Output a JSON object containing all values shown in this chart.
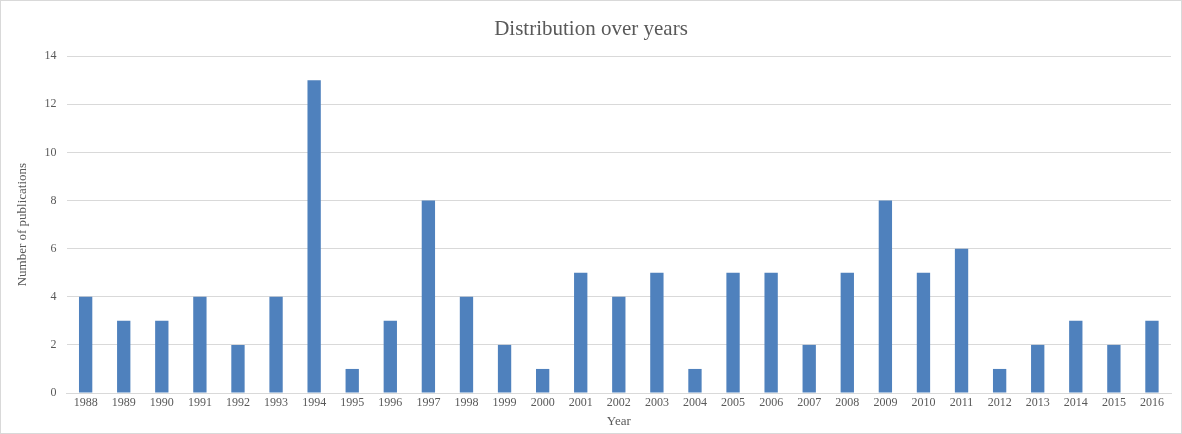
{
  "chart_data": {
    "type": "bar",
    "title": "Distribution over years",
    "xlabel": "Year",
    "ylabel": "Number of publications",
    "categories": [
      "1988",
      "1989",
      "1990",
      "1991",
      "1992",
      "1993",
      "1994",
      "1995",
      "1996",
      "1997",
      "1998",
      "1999",
      "2000",
      "2001",
      "2002",
      "2003",
      "2004",
      "2005",
      "2006",
      "2007",
      "2008",
      "2009",
      "2010",
      "2011",
      "2012",
      "2013",
      "2014",
      "2015",
      "2016"
    ],
    "values": [
      4,
      3,
      3,
      4,
      2,
      4,
      13,
      1,
      3,
      8,
      4,
      2,
      1,
      5,
      4,
      5,
      1,
      5,
      5,
      2,
      5,
      8,
      5,
      6,
      1,
      2,
      3,
      2,
      3
    ],
    "color": "#4f81bd",
    "ylim": [
      0,
      14
    ],
    "yticks": [
      0,
      2,
      4,
      6,
      8,
      10,
      12,
      14
    ],
    "grid": "y",
    "legend": false
  }
}
